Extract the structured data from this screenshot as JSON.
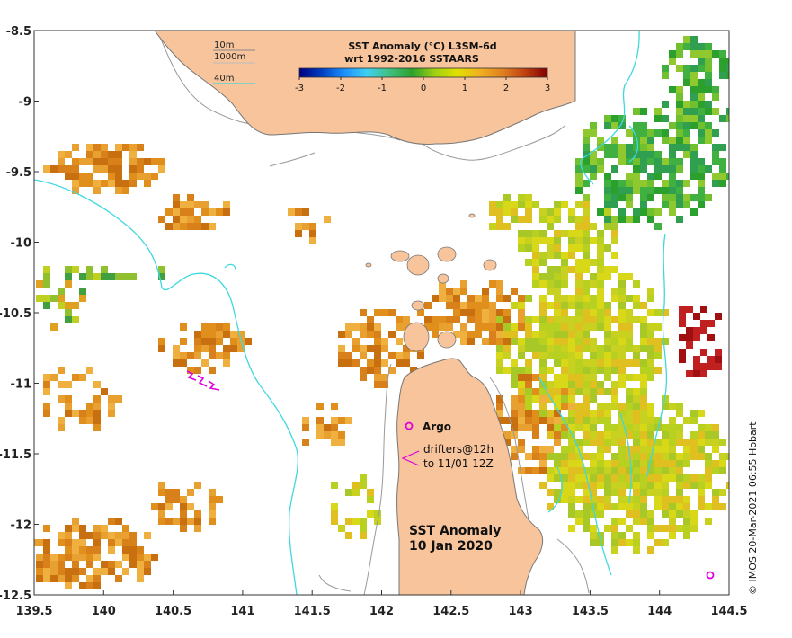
{
  "map": {
    "title": "SST Anomaly",
    "date": "10 Jan 2020",
    "credit": "© IMOS 20-Mar-2021 06:55 Hobart",
    "x_axis": {
      "range": [
        139.5,
        144.5
      ],
      "ticks": [
        "139.5",
        "140",
        "140.5",
        "141",
        "141.5",
        "142",
        "142.5",
        "143",
        "143.5",
        "144",
        "144.5"
      ]
    },
    "y_axis": {
      "range": [
        -12.5,
        -8.5
      ],
      "ticks": [
        "-8.5",
        "-9",
        "-9.5",
        "-10",
        "-10.5",
        "-11",
        "-11.5",
        "-12",
        "-12.5"
      ]
    },
    "grid": false
  },
  "legend": {
    "line1": "SST Anomaly (°C) L3SM-6d",
    "line2": "wrt 1992-2016 SSTAARS",
    "colorbar_range": [
      -3,
      3
    ],
    "colorbar_ticks": [
      "-3",
      "-2",
      "-1",
      "0",
      "1",
      "2",
      "3"
    ],
    "colormap": [
      "#000080",
      "#0040c0",
      "#1e90ff",
      "#3fd0f0",
      "#40c080",
      "#2ca02c",
      "#a0d010",
      "#e0e000",
      "#f0b020",
      "#e08020",
      "#c04010",
      "#800000"
    ]
  },
  "depth_contours": {
    "labels": [
      "10m",
      "1000m",
      "40m"
    ],
    "colors": {
      "10m": "#888888",
      "1000m": "#bbbbbb",
      "40m": "#40d8e0"
    }
  },
  "annotations": {
    "argo_label": "Argo",
    "drifters_line1": "drifters@12h",
    "drifters_line2": "to 11/01 12Z"
  },
  "colors": {
    "land": "#f7c49c",
    "land_outline": "#777777",
    "isobath_shallow": "#40d8e0",
    "argo_marker": "#e000e0",
    "drifter_track": "#e000e0",
    "anomaly_warm": "#e08f1c",
    "anomaly_mid": "#c8d020",
    "anomaly_cool": "#2ca02c",
    "anomaly_hot": "#a01010"
  }
}
